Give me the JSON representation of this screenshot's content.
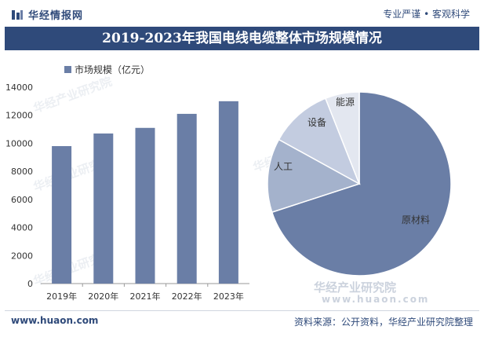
{
  "header": {
    "logo_text": "华经情报网",
    "slogan": "专业严谨 • 客观科学"
  },
  "title": "2019-2023年我国电线电缆整体市场规模情况",
  "footer": {
    "url": "www.huaon.com",
    "source": "资料来源：公开资料，华经产业研究院整理"
  },
  "watermark": {
    "name": "华经产业研究院",
    "url": "www.huaon.com"
  },
  "colors": {
    "brand": "#2f4a7a",
    "bar": "#6a7ea6",
    "pie": [
      "#6a7ea6",
      "#a4b2cc",
      "#c3cce0",
      "#e3e7f0"
    ]
  },
  "chart_data": [
    {
      "type": "bar",
      "categories": [
        "2019年",
        "2020年",
        "2021年",
        "2022年",
        "2023年"
      ],
      "series": [
        {
          "name": "市场规模（亿元）",
          "values": [
            9800,
            10700,
            11100,
            12100,
            13000
          ]
        }
      ],
      "ylim": [
        0,
        14000
      ],
      "yticks": [
        0,
        2000,
        4000,
        6000,
        8000,
        10000,
        12000,
        14000
      ],
      "legend_position": "top-left",
      "grid": false
    },
    {
      "type": "pie",
      "labels": [
        "原材料",
        "人工",
        "设备",
        "能源"
      ],
      "values": [
        70,
        13,
        11,
        6
      ]
    }
  ]
}
